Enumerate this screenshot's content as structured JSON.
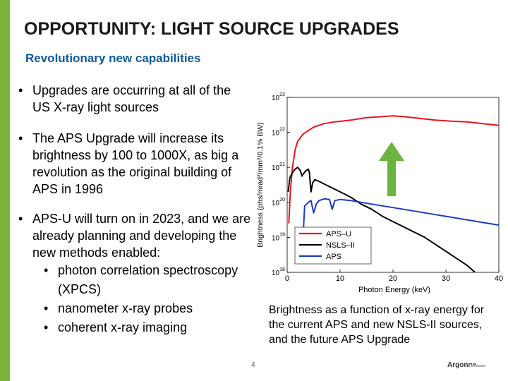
{
  "slide": {
    "title": "OPPORTUNITY: LIGHT SOURCE UPGRADES",
    "subtitle": "Revolutionary new capabilities",
    "accent_color": "#7ab53a",
    "subtitle_color": "#0d5aa1",
    "page_number": "4",
    "logo_text": "Argonne"
  },
  "bullets": [
    {
      "text": "Upgrades are occurring at all of the US X-ray light sources"
    },
    {
      "text": "The APS Upgrade will increase its brightness by 100 to 1000X, as big a revolution as the original building of APS in 1996"
    },
    {
      "text": "APS-U will turn on in 2023, and we are already planning and developing the new methods enabled:"
    }
  ],
  "sub_bullets": [
    {
      "text": "photon correlation spectroscopy (XPCS)"
    },
    {
      "text": "nanometer x-ray probes"
    },
    {
      "text": "coherent x-ray imaging"
    }
  ],
  "caption": "Brightness as a function of x-ray energy for the current APS and new NSLS-II sources, and the future APS Upgrade",
  "chart_data": {
    "type": "line",
    "xlabel": "Photon Energy (keV)",
    "ylabel": "Brightness (phs/mrad²/mm²/0.1% BW)",
    "xlim": [
      0,
      40
    ],
    "ylim_log10": [
      18,
      23
    ],
    "xticks": [
      0,
      10,
      20,
      30,
      40
    ],
    "yticks": [
      {
        "base": "10",
        "exp": "23"
      },
      {
        "base": "10",
        "exp": "22"
      },
      {
        "base": "10",
        "exp": "21"
      },
      {
        "base": "10",
        "exp": "20"
      },
      {
        "base": "10",
        "exp": "19"
      },
      {
        "base": "10",
        "exp": "18"
      }
    ],
    "legend_position": "bottom-left",
    "arrow_color": "#6db33f",
    "series": [
      {
        "name": "APS–U",
        "color": "#e8141e",
        "points": [
          [
            0.3,
            19.4
          ],
          [
            0.6,
            20.3
          ],
          [
            1,
            21.0
          ],
          [
            1.5,
            21.5
          ],
          [
            2,
            21.75
          ],
          [
            3,
            21.95
          ],
          [
            4,
            22.05
          ],
          [
            5,
            22.15
          ],
          [
            7,
            22.25
          ],
          [
            9,
            22.3
          ],
          [
            12,
            22.35
          ],
          [
            15,
            22.42
          ],
          [
            18,
            22.45
          ],
          [
            20,
            22.47
          ],
          [
            22,
            22.45
          ],
          [
            25,
            22.4
          ],
          [
            28,
            22.35
          ],
          [
            31,
            22.32
          ],
          [
            34,
            22.3
          ],
          [
            37,
            22.25
          ],
          [
            40,
            22.2
          ]
        ]
      },
      {
        "name": "NSLS–II",
        "color": "#000000",
        "points": [
          [
            0.2,
            20.3
          ],
          [
            0.5,
            20.7
          ],
          [
            1,
            20.85
          ],
          [
            1.5,
            20.95
          ],
          [
            2,
            21.0
          ],
          [
            2.5,
            20.9
          ],
          [
            2.8,
            20.75
          ],
          [
            3,
            20.8
          ],
          [
            3.5,
            20.9
          ],
          [
            4,
            20.95
          ],
          [
            4.2,
            20.85
          ],
          [
            4.5,
            20.3
          ],
          [
            4.8,
            20.55
          ],
          [
            5.2,
            20.65
          ],
          [
            6,
            20.6
          ],
          [
            8,
            20.45
          ],
          [
            10,
            20.3
          ],
          [
            12,
            20.15
          ],
          [
            14,
            19.95
          ],
          [
            16,
            19.8
          ],
          [
            18,
            19.6
          ],
          [
            20,
            19.45
          ],
          [
            22,
            19.3
          ],
          [
            24,
            19.15
          ],
          [
            26,
            19.0
          ],
          [
            28,
            18.8
          ],
          [
            30,
            18.6
          ],
          [
            32,
            18.4
          ],
          [
            34,
            18.2
          ],
          [
            35.5,
            18.0
          ]
        ]
      },
      {
        "name": "APS",
        "color": "#1a3cc8",
        "points": [
          [
            3,
            19.0
          ],
          [
            3.3,
            19.9
          ],
          [
            4,
            20.0
          ],
          [
            4.5,
            20.05
          ],
          [
            5,
            19.7
          ],
          [
            5.5,
            19.95
          ],
          [
            6,
            20.05
          ],
          [
            7,
            20.1
          ],
          [
            8,
            20.08
          ],
          [
            8.5,
            19.8
          ],
          [
            9,
            20.05
          ],
          [
            10,
            20.08
          ],
          [
            12,
            20.05
          ],
          [
            14,
            20.0
          ],
          [
            16,
            19.95
          ],
          [
            18,
            19.9
          ],
          [
            20,
            19.85
          ],
          [
            22,
            19.8
          ],
          [
            24,
            19.75
          ],
          [
            26,
            19.7
          ],
          [
            28,
            19.65
          ],
          [
            30,
            19.6
          ],
          [
            32,
            19.55
          ],
          [
            34,
            19.5
          ],
          [
            36,
            19.45
          ],
          [
            38,
            19.4
          ],
          [
            40,
            19.35
          ]
        ]
      }
    ]
  }
}
